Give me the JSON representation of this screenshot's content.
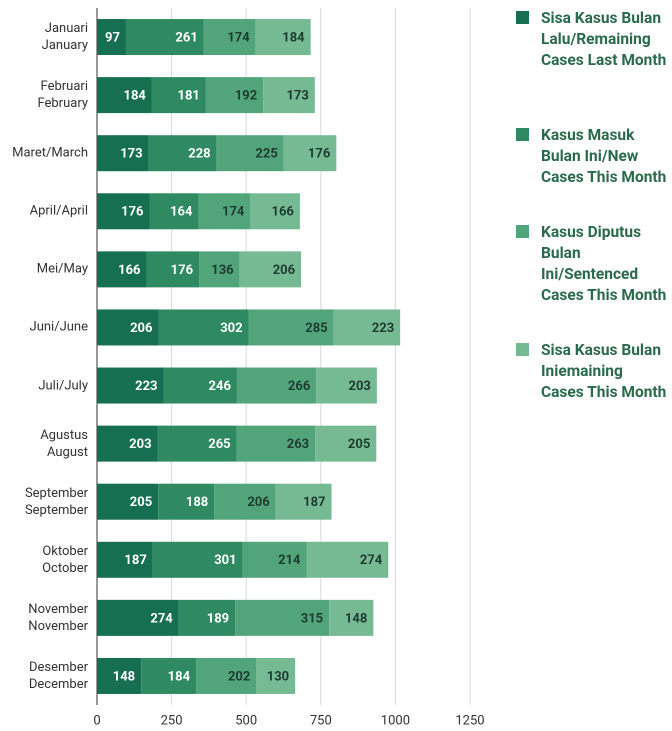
{
  "chart_data": {
    "type": "stacked-barh",
    "categories": [
      "Januari\nJanuary",
      "Februari\nFebruary",
      "Maret/March",
      "April/April",
      "Mei/May",
      "Juni/June",
      "Juli/July",
      "Agustus\nAugust",
      "September\nSeptember",
      "Oktober\nOctober",
      "November\nNovember",
      "Desember\nDecember"
    ],
    "series": [
      {
        "name": "Sisa Kasus Bulan Lalu/Remaining Cases Last Month",
        "color": "#166f50",
        "values": [
          97,
          184,
          173,
          176,
          166,
          206,
          223,
          203,
          205,
          187,
          274,
          148
        ]
      },
      {
        "name": "Kasus Masuk Bulan Ini/New Cases This Month",
        "color": "#2f8a62",
        "values": [
          261,
          181,
          228,
          164,
          176,
          302,
          246,
          265,
          188,
          301,
          189,
          184
        ]
      },
      {
        "name": "Kasus Diputus Bulan Ini/Sentenced Cases This Month",
        "color": "#52a57b",
        "values": [
          174,
          192,
          225,
          174,
          136,
          285,
          266,
          263,
          206,
          214,
          315,
          202
        ]
      },
      {
        "name": "Sisa Kasus Bulan Iniemaining Cases This Month",
        "color": "#76ba94",
        "values": [
          184,
          173,
          176,
          166,
          206,
          223,
          203,
          205,
          187,
          274,
          148,
          130
        ]
      }
    ],
    "xlim": [
      0,
      1250
    ],
    "xticks": [
      0,
      250,
      500,
      750,
      1000,
      1250
    ],
    "grid": true
  }
}
